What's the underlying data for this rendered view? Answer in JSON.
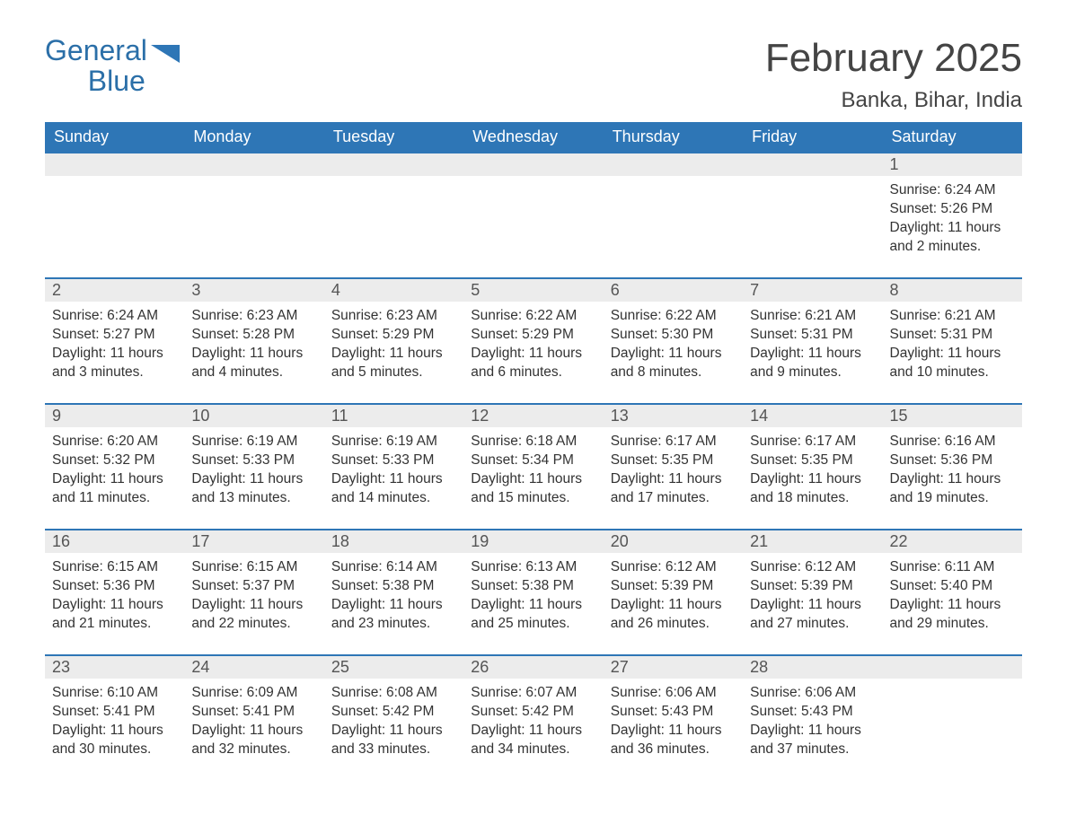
{
  "brand": {
    "line1": "General",
    "line2": "Blue",
    "text_color": "#2b6fa8",
    "flag_color": "#2e76b6"
  },
  "header": {
    "title": "February 2025",
    "location": "Banka, Bihar, India"
  },
  "colors": {
    "header_bg": "#2e76b6",
    "header_text": "#ffffff",
    "daybar_bg": "#ececec",
    "body_text": "#333333",
    "row_border": "#2e76b6",
    "page_bg": "#ffffff"
  },
  "weekdays": [
    "Sunday",
    "Monday",
    "Tuesday",
    "Wednesday",
    "Thursday",
    "Friday",
    "Saturday"
  ],
  "weeks": [
    [
      null,
      null,
      null,
      null,
      null,
      null,
      {
        "n": "1",
        "sunrise": "Sunrise: 6:24 AM",
        "sunset": "Sunset: 5:26 PM",
        "daylight": "Daylight: 11 hours and 2 minutes."
      }
    ],
    [
      {
        "n": "2",
        "sunrise": "Sunrise: 6:24 AM",
        "sunset": "Sunset: 5:27 PM",
        "daylight": "Daylight: 11 hours and 3 minutes."
      },
      {
        "n": "3",
        "sunrise": "Sunrise: 6:23 AM",
        "sunset": "Sunset: 5:28 PM",
        "daylight": "Daylight: 11 hours and 4 minutes."
      },
      {
        "n": "4",
        "sunrise": "Sunrise: 6:23 AM",
        "sunset": "Sunset: 5:29 PM",
        "daylight": "Daylight: 11 hours and 5 minutes."
      },
      {
        "n": "5",
        "sunrise": "Sunrise: 6:22 AM",
        "sunset": "Sunset: 5:29 PM",
        "daylight": "Daylight: 11 hours and 6 minutes."
      },
      {
        "n": "6",
        "sunrise": "Sunrise: 6:22 AM",
        "sunset": "Sunset: 5:30 PM",
        "daylight": "Daylight: 11 hours and 8 minutes."
      },
      {
        "n": "7",
        "sunrise": "Sunrise: 6:21 AM",
        "sunset": "Sunset: 5:31 PM",
        "daylight": "Daylight: 11 hours and 9 minutes."
      },
      {
        "n": "8",
        "sunrise": "Sunrise: 6:21 AM",
        "sunset": "Sunset: 5:31 PM",
        "daylight": "Daylight: 11 hours and 10 minutes."
      }
    ],
    [
      {
        "n": "9",
        "sunrise": "Sunrise: 6:20 AM",
        "sunset": "Sunset: 5:32 PM",
        "daylight": "Daylight: 11 hours and 11 minutes."
      },
      {
        "n": "10",
        "sunrise": "Sunrise: 6:19 AM",
        "sunset": "Sunset: 5:33 PM",
        "daylight": "Daylight: 11 hours and 13 minutes."
      },
      {
        "n": "11",
        "sunrise": "Sunrise: 6:19 AM",
        "sunset": "Sunset: 5:33 PM",
        "daylight": "Daylight: 11 hours and 14 minutes."
      },
      {
        "n": "12",
        "sunrise": "Sunrise: 6:18 AM",
        "sunset": "Sunset: 5:34 PM",
        "daylight": "Daylight: 11 hours and 15 minutes."
      },
      {
        "n": "13",
        "sunrise": "Sunrise: 6:17 AM",
        "sunset": "Sunset: 5:35 PM",
        "daylight": "Daylight: 11 hours and 17 minutes."
      },
      {
        "n": "14",
        "sunrise": "Sunrise: 6:17 AM",
        "sunset": "Sunset: 5:35 PM",
        "daylight": "Daylight: 11 hours and 18 minutes."
      },
      {
        "n": "15",
        "sunrise": "Sunrise: 6:16 AM",
        "sunset": "Sunset: 5:36 PM",
        "daylight": "Daylight: 11 hours and 19 minutes."
      }
    ],
    [
      {
        "n": "16",
        "sunrise": "Sunrise: 6:15 AM",
        "sunset": "Sunset: 5:36 PM",
        "daylight": "Daylight: 11 hours and 21 minutes."
      },
      {
        "n": "17",
        "sunrise": "Sunrise: 6:15 AM",
        "sunset": "Sunset: 5:37 PM",
        "daylight": "Daylight: 11 hours and 22 minutes."
      },
      {
        "n": "18",
        "sunrise": "Sunrise: 6:14 AM",
        "sunset": "Sunset: 5:38 PM",
        "daylight": "Daylight: 11 hours and 23 minutes."
      },
      {
        "n": "19",
        "sunrise": "Sunrise: 6:13 AM",
        "sunset": "Sunset: 5:38 PM",
        "daylight": "Daylight: 11 hours and 25 minutes."
      },
      {
        "n": "20",
        "sunrise": "Sunrise: 6:12 AM",
        "sunset": "Sunset: 5:39 PM",
        "daylight": "Daylight: 11 hours and 26 minutes."
      },
      {
        "n": "21",
        "sunrise": "Sunrise: 6:12 AM",
        "sunset": "Sunset: 5:39 PM",
        "daylight": "Daylight: 11 hours and 27 minutes."
      },
      {
        "n": "22",
        "sunrise": "Sunrise: 6:11 AM",
        "sunset": "Sunset: 5:40 PM",
        "daylight": "Daylight: 11 hours and 29 minutes."
      }
    ],
    [
      {
        "n": "23",
        "sunrise": "Sunrise: 6:10 AM",
        "sunset": "Sunset: 5:41 PM",
        "daylight": "Daylight: 11 hours and 30 minutes."
      },
      {
        "n": "24",
        "sunrise": "Sunrise: 6:09 AM",
        "sunset": "Sunset: 5:41 PM",
        "daylight": "Daylight: 11 hours and 32 minutes."
      },
      {
        "n": "25",
        "sunrise": "Sunrise: 6:08 AM",
        "sunset": "Sunset: 5:42 PM",
        "daylight": "Daylight: 11 hours and 33 minutes."
      },
      {
        "n": "26",
        "sunrise": "Sunrise: 6:07 AM",
        "sunset": "Sunset: 5:42 PM",
        "daylight": "Daylight: 11 hours and 34 minutes."
      },
      {
        "n": "27",
        "sunrise": "Sunrise: 6:06 AM",
        "sunset": "Sunset: 5:43 PM",
        "daylight": "Daylight: 11 hours and 36 minutes."
      },
      {
        "n": "28",
        "sunrise": "Sunrise: 6:06 AM",
        "sunset": "Sunset: 5:43 PM",
        "daylight": "Daylight: 11 hours and 37 minutes."
      },
      null
    ]
  ]
}
